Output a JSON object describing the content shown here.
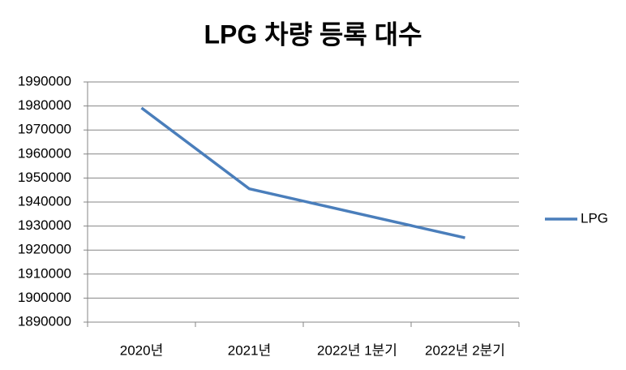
{
  "chart_data": {
    "type": "line",
    "title": "LPG 차량 등록 대수",
    "categories": [
      "2020년",
      "2021년",
      "2022년 1분기",
      "2022년 2분기"
    ],
    "series": [
      {
        "name": "LPG",
        "color": "#4a7ebb",
        "values": [
          1979200,
          1945500,
          1935300,
          1925100
        ]
      }
    ],
    "ylim": [
      1890000,
      1990000
    ],
    "yticks": [
      1890000,
      1900000,
      1910000,
      1920000,
      1930000,
      1940000,
      1950000,
      1960000,
      1970000,
      1980000,
      1990000
    ],
    "grid": true,
    "legend": "right"
  }
}
